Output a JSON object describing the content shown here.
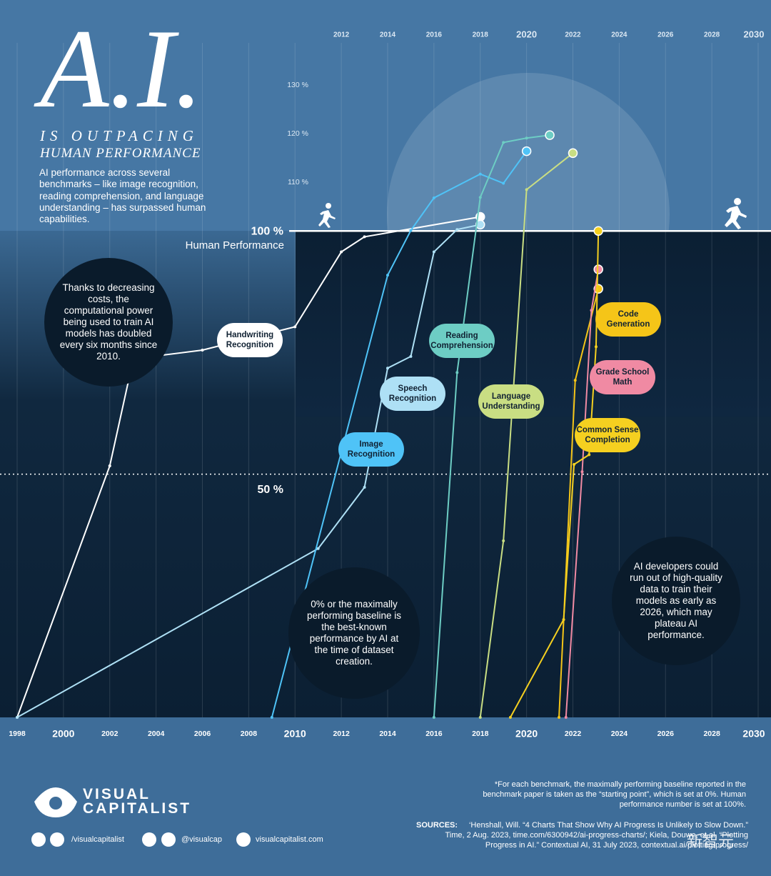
{
  "chart_data": {
    "type": "line",
    "title": "A.I.",
    "subtitle": [
      "IS OUTPACING",
      "HUMAN PERFORMANCE"
    ],
    "description": "AI performance across several benchmarks – like image recognition, reading comprehension, and language understanding – has surpassed human capabilities.",
    "baseline_label": "Human Performance",
    "annotations": [
      "Thanks to decreasing costs, the computational power being used to train AI models has doubled every six months since 2010.",
      "0% or the maximally performing baseline is the best-known performance by AI at the time of dataset creation.",
      "AI developers could run out of high-quality data to train their models as early as 2026, which may plateau AI performance."
    ],
    "xlim": [
      1998,
      2030
    ],
    "xticks": [
      1998,
      2000,
      2002,
      2004,
      2006,
      2008,
      2010,
      2012,
      2014,
      2016,
      2018,
      2020,
      2022,
      2024,
      2026,
      2028,
      2030
    ],
    "ylim": [
      0,
      130
    ],
    "yticks": [
      {
        "value": 50,
        "label": "50 %"
      },
      {
        "value": 100,
        "label": "100 %"
      },
      {
        "value": 110,
        "label": "110 %"
      },
      {
        "value": 120,
        "label": "120 %"
      },
      {
        "value": 130,
        "label": "130 %"
      }
    ],
    "grid": true,
    "series": [
      {
        "name": "Handwriting Recognition",
        "color": "#ffffff",
        "x": [
          1998,
          2002,
          2002.8,
          2004,
          2006,
          2010,
          2012,
          2013,
          2018
        ],
        "values": [
          0,
          51.7,
          69,
          74.3,
          75.5,
          80.3,
          95.7,
          98.8,
          102.9
        ]
      },
      {
        "name": "Speech Recognition",
        "color": "#aee0f5",
        "x": [
          1998,
          2011,
          2013,
          2014,
          2015,
          2016,
          2017,
          2018
        ],
        "values": [
          0,
          34.7,
          47.3,
          71.8,
          74.2,
          95.7,
          100.3,
          101.3
        ]
      },
      {
        "name": "Image Recognition",
        "color": "#4fc3f7",
        "x": [
          2009,
          2014,
          2015,
          2016,
          2018,
          2019,
          2020
        ],
        "values": [
          0,
          90.9,
          100.1,
          106.8,
          111.7,
          109.8,
          116.4
        ]
      },
      {
        "name": "Reading Comprehension",
        "color": "#6dcdc4",
        "x": [
          2016,
          2017,
          2018,
          2019,
          2020,
          2021
        ],
        "values": [
          0,
          70.9,
          106.9,
          118.2,
          119.1,
          119.7
        ]
      },
      {
        "name": "Language Understanding",
        "color": "#c9de83",
        "x": [
          2018,
          2019,
          2020,
          2022
        ],
        "values": [
          0,
          36.3,
          108.5,
          116
        ]
      },
      {
        "name": "Code Generation",
        "color": "#f5c518",
        "x": [
          2021.4,
          2022.1,
          2023.1
        ],
        "values": [
          0,
          69.3,
          88.1
        ]
      },
      {
        "name": "Grade School Math",
        "color": "#f08aa3",
        "x": [
          2021.7,
          2022.4,
          2022.8,
          2023.1
        ],
        "values": [
          0,
          50.5,
          83.7,
          92.1
        ]
      },
      {
        "name": "Common Sense Completion",
        "color": "#f5d020",
        "x": [
          2019.3,
          2021.6,
          2022.05,
          2022.7,
          2023,
          2023.1
        ],
        "values": [
          0,
          20.1,
          52,
          54,
          76.2,
          100
        ]
      }
    ]
  },
  "footer": {
    "brand": [
      "VISUAL",
      "CAPITALIST"
    ],
    "handles": [
      "/visualcapitalist",
      "@visualcap",
      "visualcapitalist.com"
    ],
    "note": "*For each benchmark, the maximally performing baseline reported in the benchmark paper is taken as the “starting point”, which is set at 0%. Human performance number is set at 100%.",
    "sources_label": "SOURCES:",
    "sources": "‘Henshall, Will. “4 Charts That Show Why AI Progress Is Unlikely to Slow Down.” Time, 2 Aug. 2023, time.com/6300942/ai-progress-charts/; Kiela, Douwe, et al. “Plotting Progress in AI.” Contextual AI, 31 July 2023, contextual.ai/plotting-progress/",
    "watermark": "新智元"
  }
}
